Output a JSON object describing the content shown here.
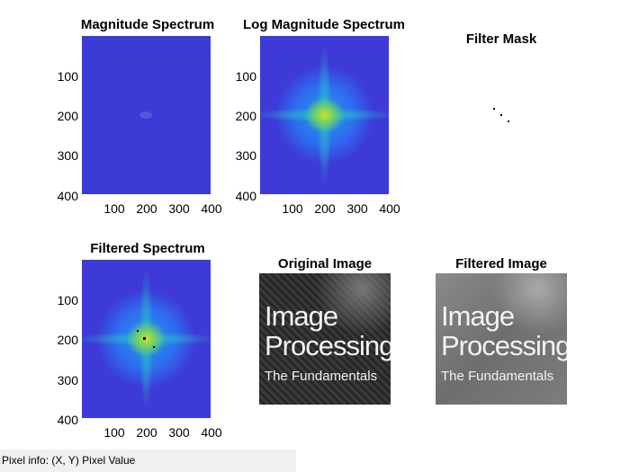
{
  "panels": {
    "magnitude": {
      "title": "Magnitude Spectrum"
    },
    "log_magnitude": {
      "title": "Log Magnitude Spectrum"
    },
    "filter_mask": {
      "title": "Filter Mask"
    },
    "filtered_spectrum": {
      "title": "Filtered Spectrum"
    },
    "original_image": {
      "title": "Original Image",
      "lines": [
        "Image",
        "Processing",
        "The Fundamentals"
      ]
    },
    "filtered_image": {
      "title": "Filtered Image",
      "lines": [
        "Image",
        "Processing",
        "The Fundamentals"
      ]
    }
  },
  "axes": {
    "x_ticks": [
      "100",
      "200",
      "300",
      "400"
    ],
    "y_ticks": [
      "100",
      "200",
      "300",
      "400"
    ]
  },
  "status": {
    "pixel_info": "Pixel info: (X, Y)  Pixel Value"
  },
  "colors": {
    "background": "#ffffff",
    "spectrum_low": "#3d3ad8",
    "spectrum_high": "#c8e02a",
    "status_bar": "#f0f0f0"
  }
}
